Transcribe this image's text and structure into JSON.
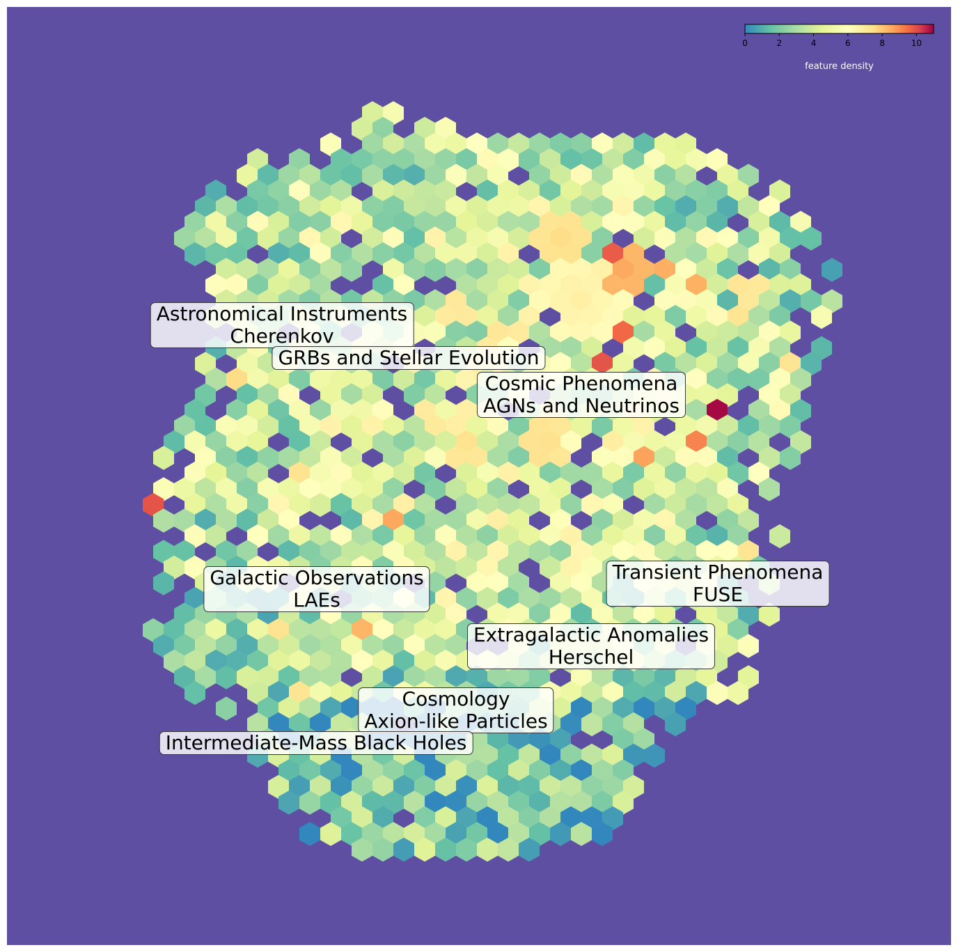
{
  "chart_data": {
    "type": "heatmap",
    "subtype": "hexbin",
    "title": "",
    "xlabel": "",
    "ylabel": "",
    "axes_visible": false,
    "background_color": "#5e4fa2",
    "colormap": "Spectral_r",
    "color_range": [
      0,
      11
    ],
    "colorbar": {
      "label": "feature density",
      "ticks": [
        0,
        2,
        4,
        6,
        8,
        10
      ],
      "tick_labels": [
        "0",
        "2",
        "4",
        "6",
        "8",
        "10"
      ],
      "placement": "top-right"
    },
    "topic_labels": [
      {
        "lines": [
          "Astronomical Instruments",
          "Cherenkov"
        ]
      },
      {
        "lines": [
          "GRBs and Stellar Evolution"
        ]
      },
      {
        "lines": [
          "Cosmic Phenomena",
          "AGNs and Neutrinos"
        ]
      },
      {
        "lines": [
          "Galactic Observations",
          "LAEs"
        ]
      },
      {
        "lines": [
          "Transient Phenomena",
          "FUSE"
        ]
      },
      {
        "lines": [
          "Extragalactic Anomalies",
          "Herschel"
        ]
      },
      {
        "lines": [
          "Cosmology",
          "Axion-like Particles"
        ]
      },
      {
        "lines": [
          "Intermediate-Mass Black Holes"
        ]
      }
    ],
    "density_hotspots": [
      {
        "region": "upper-right, below Cosmic Phenomena",
        "max_value": 11
      },
      {
        "region": "center-right cluster",
        "value_range": [
          8,
          10
        ]
      },
      {
        "region": "left edge",
        "value": 9
      }
    ]
  }
}
